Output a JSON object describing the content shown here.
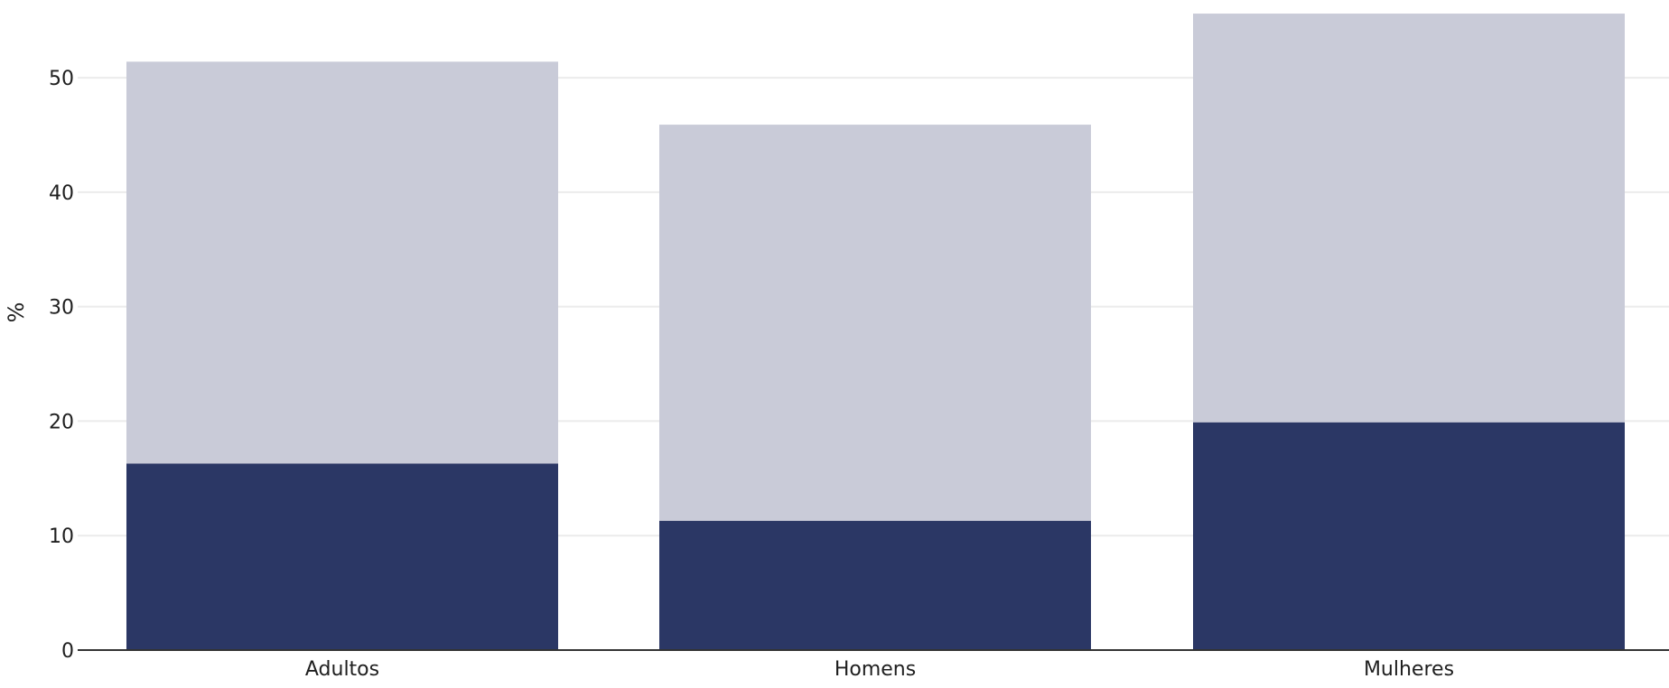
{
  "chart_data": {
    "type": "bar",
    "stacked": true,
    "categories": [
      "Adultos",
      "Homens",
      "Mulheres"
    ],
    "series": [
      {
        "values": [
          16.3,
          11.3,
          19.9
        ],
        "color": "#2b3765"
      },
      {
        "values": [
          35.1,
          34.6,
          35.7
        ],
        "color": "#c9cbd8"
      }
    ],
    "xlabel": "",
    "ylabel": "%",
    "ylim": [
      0,
      56
    ],
    "yticks": [
      0,
      10,
      20,
      30,
      40,
      50
    ],
    "grid": true,
    "gridColor": "#ebebeb",
    "axisColor": "#333333"
  }
}
